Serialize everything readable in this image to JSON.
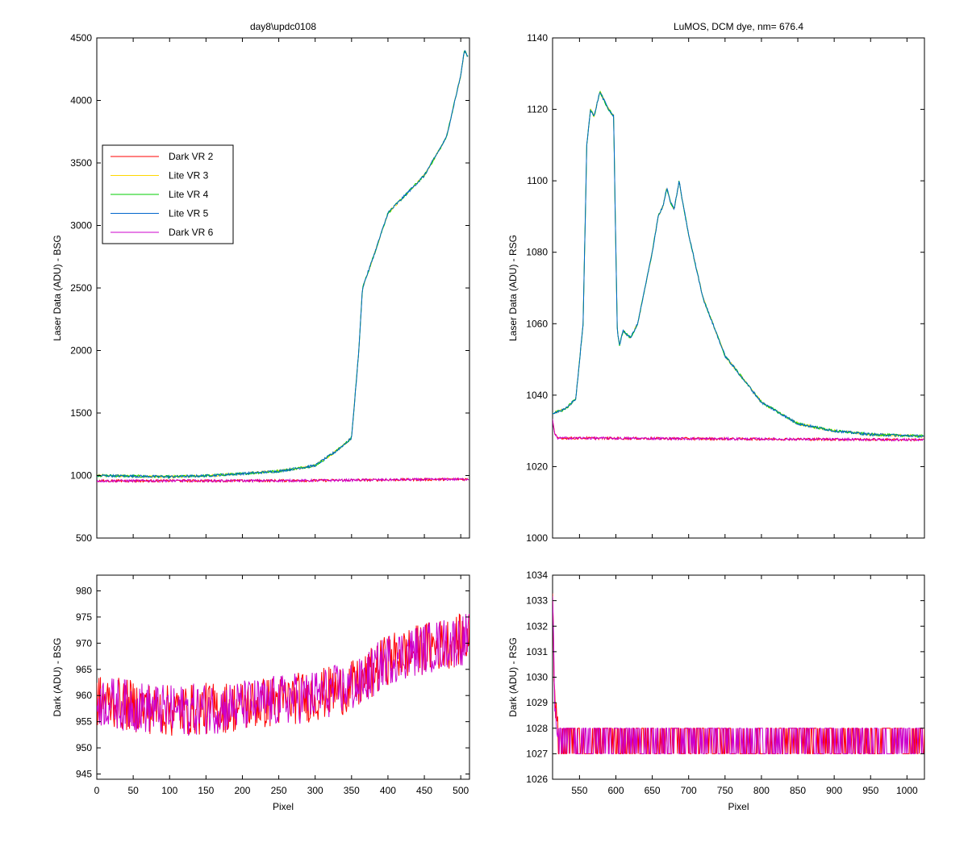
{
  "figure_title": "",
  "colors": {
    "dark_vr2": "#ff0000",
    "lite_vr3": "#ffd700",
    "lite_vr4": "#00cc00",
    "lite_vr5": "#0066cc",
    "dark_vr6": "#cc00cc"
  },
  "chart_data": [
    {
      "id": "bsg_laser",
      "type": "line",
      "title": "day8\\updc0108",
      "xlabel": "",
      "ylabel": "Laser Data (ADU) - BSG",
      "xlim": [
        0,
        512
      ],
      "ylim": [
        500,
        4500
      ],
      "xticks": [
        0,
        50,
        100,
        150,
        200,
        250,
        300,
        350,
        400,
        450,
        500
      ],
      "yticks": [
        500,
        1000,
        1500,
        2000,
        2500,
        3000,
        3500,
        4000,
        4500
      ],
      "show_xtick_labels": false,
      "legend": {
        "position": "upper-left",
        "entries": [
          {
            "label": "Dark VR 2",
            "color": "#ff0000"
          },
          {
            "label": "Lite VR 3",
            "color": "#ffd700"
          },
          {
            "label": "Lite VR 4",
            "color": "#00cc00"
          },
          {
            "label": "Lite VR 5",
            "color": "#0066cc"
          },
          {
            "label": "Dark VR 6",
            "color": "#cc00cc"
          }
        ]
      },
      "series": [
        {
          "name": "Lite VR 3",
          "color": "#ffd700",
          "points": [
            [
              0,
              1000
            ],
            [
              50,
              995
            ],
            [
              100,
              990
            ],
            [
              150,
              998
            ],
            [
              200,
              1015
            ],
            [
              250,
              1035
            ],
            [
              300,
              1080
            ],
            [
              330,
              1200
            ],
            [
              350,
              1300
            ],
            [
              360,
              2000
            ],
            [
              365,
              2500
            ],
            [
              380,
              2750
            ],
            [
              400,
              3100
            ],
            [
              450,
              3400
            ],
            [
              480,
              3700
            ],
            [
              500,
              4200
            ],
            [
              505,
              4400
            ],
            [
              510,
              4350
            ]
          ]
        },
        {
          "name": "Lite VR 4",
          "color": "#00cc00",
          "points": [
            [
              0,
              1000
            ],
            [
              50,
              995
            ],
            [
              100,
              990
            ],
            [
              150,
              998
            ],
            [
              200,
              1015
            ],
            [
              250,
              1035
            ],
            [
              300,
              1080
            ],
            [
              330,
              1200
            ],
            [
              350,
              1300
            ],
            [
              360,
              2000
            ],
            [
              365,
              2500
            ],
            [
              380,
              2750
            ],
            [
              400,
              3100
            ],
            [
              450,
              3400
            ],
            [
              480,
              3700
            ],
            [
              500,
              4200
            ],
            [
              505,
              4400
            ],
            [
              510,
              4350
            ]
          ]
        },
        {
          "name": "Lite VR 5",
          "color": "#0066cc",
          "points": [
            [
              0,
              1000
            ],
            [
              50,
              995
            ],
            [
              100,
              990
            ],
            [
              150,
              998
            ],
            [
              200,
              1015
            ],
            [
              250,
              1035
            ],
            [
              300,
              1080
            ],
            [
              330,
              1200
            ],
            [
              350,
              1300
            ],
            [
              360,
              2000
            ],
            [
              365,
              2500
            ],
            [
              380,
              2750
            ],
            [
              400,
              3100
            ],
            [
              450,
              3400
            ],
            [
              480,
              3700
            ],
            [
              500,
              4200
            ],
            [
              505,
              4400
            ],
            [
              510,
              4350
            ]
          ]
        },
        {
          "name": "Dark VR 2",
          "color": "#ff0000",
          "points": [
            [
              0,
              957
            ],
            [
              100,
              958
            ],
            [
              200,
              958
            ],
            [
              300,
              960
            ],
            [
              400,
              966
            ],
            [
              512,
              971
            ]
          ]
        },
        {
          "name": "Dark VR 6",
          "color": "#cc00cc",
          "points": [
            [
              0,
              957
            ],
            [
              100,
              958
            ],
            [
              200,
              958
            ],
            [
              300,
              960
            ],
            [
              400,
              966
            ],
            [
              512,
              971
            ]
          ]
        }
      ]
    },
    {
      "id": "rsg_laser",
      "type": "line",
      "title": "LuMOS, DCM dye, nm= 676.4",
      "xlabel": "",
      "ylabel": "Laser Data (ADU) - RSG",
      "xlim": [
        513,
        1024
      ],
      "ylim": [
        1000,
        1140
      ],
      "xticks": [
        550,
        600,
        650,
        700,
        750,
        800,
        850,
        900,
        950,
        1000
      ],
      "yticks": [
        1000,
        1020,
        1040,
        1060,
        1080,
        1100,
        1120,
        1140
      ],
      "show_xtick_labels": false,
      "series": [
        {
          "name": "Lite VR 3",
          "color": "#ffd700",
          "points": [
            [
              513,
              1035
            ],
            [
              530,
              1036
            ],
            [
              545,
              1039
            ],
            [
              555,
              1060
            ],
            [
              560,
              1110
            ],
            [
              565,
              1120
            ],
            [
              570,
              1118
            ],
            [
              578,
              1125
            ],
            [
              585,
              1122
            ],
            [
              590,
              1120
            ],
            [
              597,
              1118
            ],
            [
              600,
              1080
            ],
            [
              602,
              1058
            ],
            [
              605,
              1054
            ],
            [
              610,
              1058
            ],
            [
              620,
              1056
            ],
            [
              630,
              1060
            ],
            [
              640,
              1070
            ],
            [
              650,
              1080
            ],
            [
              658,
              1090
            ],
            [
              665,
              1093
            ],
            [
              670,
              1098
            ],
            [
              675,
              1094
            ],
            [
              680,
              1092
            ],
            [
              687,
              1100
            ],
            [
              690,
              1096
            ],
            [
              700,
              1085
            ],
            [
              720,
              1067
            ],
            [
              750,
              1051
            ],
            [
              800,
              1038
            ],
            [
              850,
              1032
            ],
            [
              900,
              1030
            ],
            [
              950,
              1029
            ],
            [
              1024,
              1028.5
            ]
          ]
        },
        {
          "name": "Lite VR 4",
          "color": "#00cc00",
          "points": [
            [
              513,
              1035
            ],
            [
              530,
              1036
            ],
            [
              545,
              1039
            ],
            [
              555,
              1060
            ],
            [
              560,
              1110
            ],
            [
              565,
              1120
            ],
            [
              570,
              1118
            ],
            [
              578,
              1125
            ],
            [
              585,
              1122
            ],
            [
              590,
              1120
            ],
            [
              597,
              1118
            ],
            [
              600,
              1080
            ],
            [
              602,
              1058
            ],
            [
              605,
              1054
            ],
            [
              610,
              1058
            ],
            [
              620,
              1056
            ],
            [
              630,
              1060
            ],
            [
              640,
              1070
            ],
            [
              650,
              1080
            ],
            [
              658,
              1090
            ],
            [
              665,
              1093
            ],
            [
              670,
              1098
            ],
            [
              675,
              1094
            ],
            [
              680,
              1092
            ],
            [
              687,
              1100
            ],
            [
              690,
              1096
            ],
            [
              700,
              1085
            ],
            [
              720,
              1067
            ],
            [
              750,
              1051
            ],
            [
              800,
              1038
            ],
            [
              850,
              1032
            ],
            [
              900,
              1030
            ],
            [
              950,
              1029
            ],
            [
              1024,
              1028.5
            ]
          ]
        },
        {
          "name": "Lite VR 5",
          "color": "#0066cc",
          "points": [
            [
              513,
              1035
            ],
            [
              530,
              1036
            ],
            [
              545,
              1039
            ],
            [
              555,
              1060
            ],
            [
              560,
              1110
            ],
            [
              565,
              1120
            ],
            [
              570,
              1118
            ],
            [
              578,
              1125
            ],
            [
              585,
              1122
            ],
            [
              590,
              1120
            ],
            [
              597,
              1118
            ],
            [
              600,
              1080
            ],
            [
              602,
              1058
            ],
            [
              605,
              1054
            ],
            [
              610,
              1058
            ],
            [
              620,
              1056
            ],
            [
              630,
              1060
            ],
            [
              640,
              1070
            ],
            [
              650,
              1080
            ],
            [
              658,
              1090
            ],
            [
              665,
              1093
            ],
            [
              670,
              1098
            ],
            [
              675,
              1094
            ],
            [
              680,
              1092
            ],
            [
              687,
              1100
            ],
            [
              690,
              1096
            ],
            [
              700,
              1085
            ],
            [
              720,
              1067
            ],
            [
              750,
              1051
            ],
            [
              800,
              1038
            ],
            [
              850,
              1032
            ],
            [
              900,
              1030
            ],
            [
              950,
              1029
            ],
            [
              1024,
              1028.5
            ]
          ]
        },
        {
          "name": "Dark VR 2",
          "color": "#ff0000",
          "points": [
            [
              513,
              1033
            ],
            [
              516,
              1029
            ],
            [
              520,
              1028
            ],
            [
              1024,
              1027.5
            ]
          ]
        },
        {
          "name": "Dark VR 6",
          "color": "#cc00cc",
          "points": [
            [
              513,
              1033
            ],
            [
              516,
              1029
            ],
            [
              520,
              1028
            ],
            [
              1024,
              1027.5
            ]
          ]
        }
      ]
    },
    {
      "id": "bsg_dark",
      "type": "line",
      "title": "",
      "xlabel": "Pixel",
      "ylabel": "Dark (ADU) - BSG",
      "xlim": [
        0,
        512
      ],
      "ylim": [
        944,
        983
      ],
      "xticks": [
        0,
        50,
        100,
        150,
        200,
        250,
        300,
        350,
        400,
        450,
        500
      ],
      "yticks": [
        945,
        950,
        955,
        960,
        965,
        970,
        975,
        980
      ],
      "show_xtick_labels": true,
      "series": [
        {
          "name": "Dark VR 2",
          "color": "#ff0000",
          "baseline": [
            [
              0,
              959
            ],
            [
              100,
              957
            ],
            [
              200,
              958
            ],
            [
              300,
              960
            ],
            [
              360,
              962
            ],
            [
              400,
              967
            ],
            [
              450,
              969
            ],
            [
              512,
              971
            ]
          ],
          "noise": 5
        },
        {
          "name": "Dark VR 6",
          "color": "#cc00cc",
          "baseline": [
            [
              0,
              959
            ],
            [
              100,
              957
            ],
            [
              200,
              958
            ],
            [
              300,
              960
            ],
            [
              360,
              962
            ],
            [
              400,
              967
            ],
            [
              450,
              969
            ],
            [
              512,
              971
            ]
          ],
          "noise": 5
        }
      ]
    },
    {
      "id": "rsg_dark",
      "type": "line",
      "title": "",
      "xlabel": "Pixel",
      "ylabel": "Dark (ADU) - RSG",
      "xlim": [
        513,
        1024
      ],
      "ylim": [
        1026,
        1034
      ],
      "xticks": [
        550,
        600,
        650,
        700,
        750,
        800,
        850,
        900,
        950,
        1000
      ],
      "yticks": [
        1026,
        1027,
        1028,
        1029,
        1030,
        1031,
        1032,
        1033,
        1034
      ],
      "show_xtick_labels": true,
      "series": [
        {
          "name": "Dark VR 2",
          "color": "#ff0000",
          "baseline": [
            [
              513,
              1033
            ],
            [
              516,
              1029
            ],
            [
              520,
              1028
            ],
            [
              1024,
              1027.5
            ]
          ],
          "noise": 0.5
        },
        {
          "name": "Dark VR 6",
          "color": "#cc00cc",
          "baseline": [
            [
              513,
              1033
            ],
            [
              516,
              1029
            ],
            [
              520,
              1028
            ],
            [
              1024,
              1027.5
            ]
          ],
          "noise": 0.5
        }
      ]
    }
  ]
}
